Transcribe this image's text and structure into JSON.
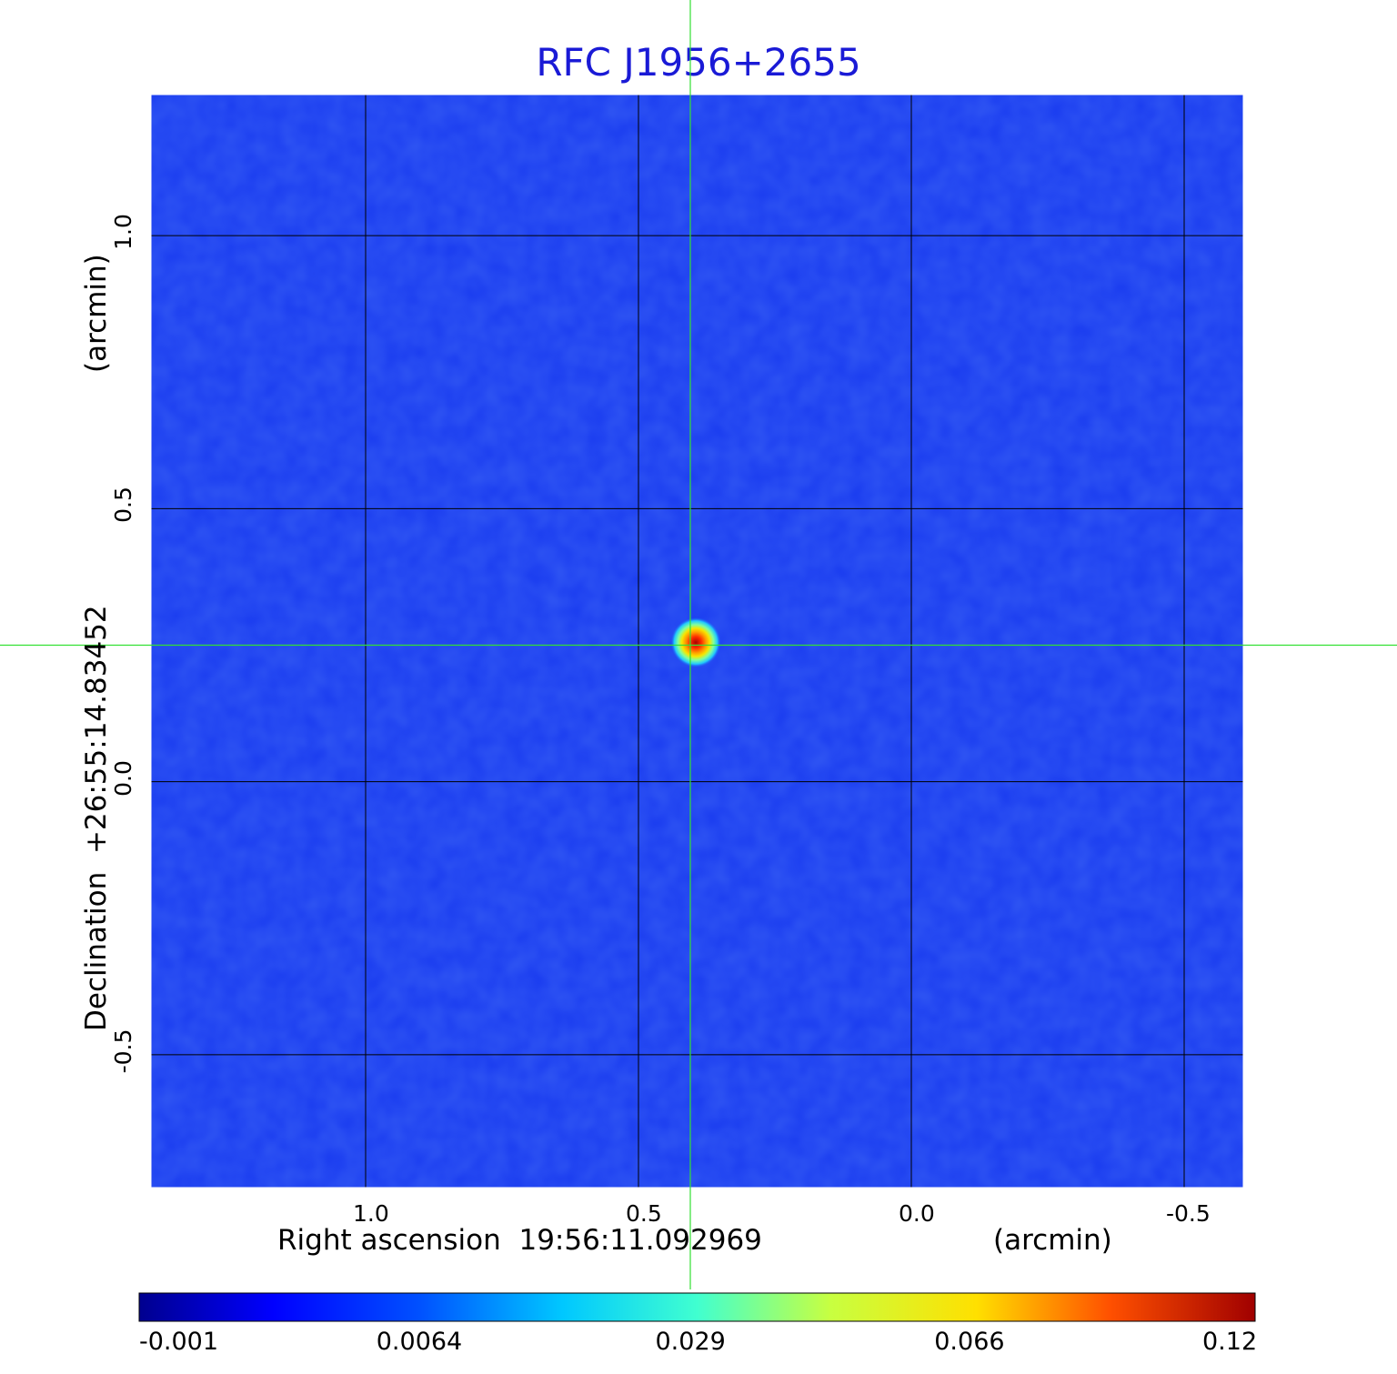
{
  "chart_data": {
    "type": "heatmap",
    "title": "RFC J1956+2655",
    "xlabel": "Right ascension  19:56:11.092969",
    "xunit": "(arcmin)",
    "ylabel_unit": "(arcmin)",
    "ylabel": "Declination  +26:55:14.83452",
    "x_ticks": [
      {
        "value": 1.0,
        "label": "1.0"
      },
      {
        "value": 0.5,
        "label": "0.5"
      },
      {
        "value": 0.0,
        "label": "0.0"
      },
      {
        "value": -0.5,
        "label": "-0.5"
      }
    ],
    "y_ticks": [
      {
        "value": 1.0,
        "label": "1.0"
      },
      {
        "value": 0.5,
        "label": "0.5"
      },
      {
        "value": 0.0,
        "label": "0.0"
      },
      {
        "value": -0.5,
        "label": "-0.5"
      }
    ],
    "xlim": [
      1.395,
      -0.61
    ],
    "ylim": [
      -0.745,
      1.26
    ],
    "grid": true,
    "crosshair": {
      "x": 0.405,
      "y": 0.25
    },
    "source": {
      "x": 0.395,
      "y": 0.255,
      "peak": 0.12
    },
    "colorbar": {
      "colormap": "jet",
      "ticks": [
        {
          "value": -0.001,
          "label": "-0.001"
        },
        {
          "value": 0.0064,
          "label": "0.0064"
        },
        {
          "value": 0.029,
          "label": "0.029"
        },
        {
          "value": 0.066,
          "label": "0.066"
        },
        {
          "value": 0.12,
          "label": "0.12"
        }
      ]
    },
    "colors": {
      "title": "#1a1ad6",
      "background_field": "#1a3cf0",
      "grid": "#000000",
      "crosshair": "#33e033",
      "frame": "#ffffff"
    }
  }
}
